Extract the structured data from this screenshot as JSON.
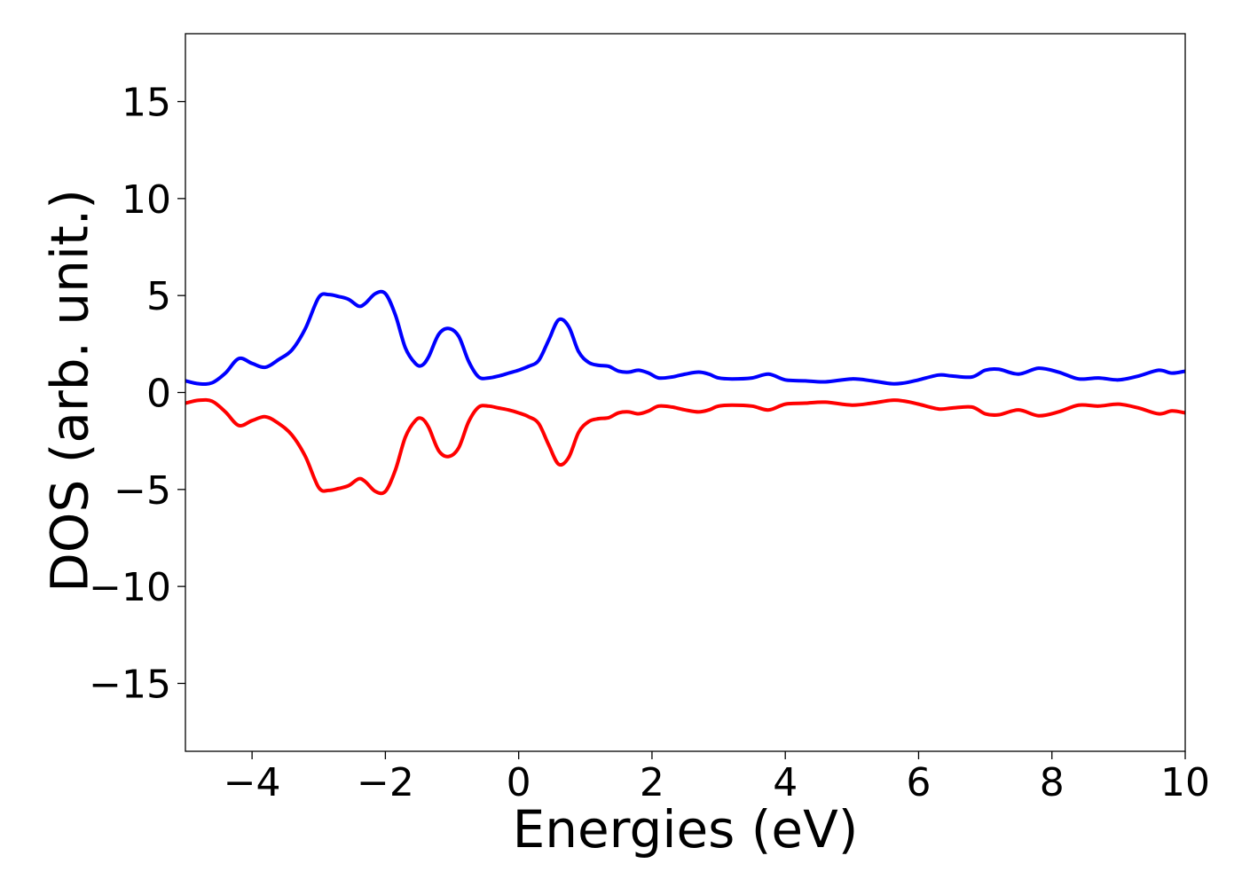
{
  "chart_data": {
    "type": "line",
    "xlabel": "Energies (eV)",
    "ylabel": "DOS (arb. unit.)",
    "xlim": [
      -5,
      10
    ],
    "ylim": [
      -18.5,
      18.5
    ],
    "grid": false,
    "xticks": [
      -4,
      -2,
      0,
      2,
      4,
      6,
      8,
      10
    ],
    "xtick_labels": [
      "−4",
      "−2",
      "0",
      "2",
      "4",
      "6",
      "8",
      "10"
    ],
    "yticks": [
      -15,
      -10,
      -5,
      0,
      5,
      10,
      15
    ],
    "ytick_labels": [
      "−15",
      "−10",
      "−5",
      "0",
      "5",
      "10",
      "15"
    ],
    "series": [
      {
        "color": "#0000ff",
        "x": [
          -5.0,
          -4.8,
          -4.6,
          -4.4,
          -4.2,
          -4.0,
          -3.8,
          -3.6,
          -3.4,
          -3.2,
          -3.0,
          -2.85,
          -2.7,
          -2.55,
          -2.4,
          -2.3,
          -2.15,
          -2.0,
          -1.85,
          -1.7,
          -1.55,
          -1.45,
          -1.35,
          -1.2,
          -1.05,
          -0.9,
          -0.75,
          -0.6,
          -0.45,
          -0.3,
          -0.15,
          0.0,
          0.15,
          0.3,
          0.45,
          0.6,
          0.75,
          0.9,
          1.05,
          1.2,
          1.35,
          1.5,
          1.65,
          1.8,
          1.95,
          2.1,
          2.3,
          2.5,
          2.7,
          2.85,
          3.0,
          3.2,
          3.5,
          3.75,
          4.0,
          4.3,
          4.6,
          5.0,
          5.3,
          5.6,
          5.8,
          6.0,
          6.3,
          6.5,
          6.8,
          7.0,
          7.2,
          7.5,
          7.8,
          8.1,
          8.4,
          8.7,
          9.0,
          9.3,
          9.6,
          9.8,
          10.0
        ],
        "y": [
          0.6,
          0.45,
          0.5,
          1.0,
          1.75,
          1.5,
          1.3,
          1.7,
          2.2,
          3.3,
          4.9,
          5.05,
          4.95,
          4.8,
          4.45,
          4.6,
          5.1,
          5.1,
          4.0,
          2.3,
          1.5,
          1.4,
          1.85,
          3.0,
          3.3,
          2.9,
          1.6,
          0.8,
          0.75,
          0.85,
          1.0,
          1.15,
          1.35,
          1.65,
          2.7,
          3.75,
          3.4,
          2.1,
          1.55,
          1.4,
          1.35,
          1.1,
          1.05,
          1.15,
          1.0,
          0.75,
          0.8,
          0.95,
          1.05,
          0.95,
          0.75,
          0.7,
          0.75,
          0.95,
          0.65,
          0.6,
          0.55,
          0.7,
          0.6,
          0.45,
          0.5,
          0.65,
          0.9,
          0.85,
          0.8,
          1.15,
          1.2,
          0.95,
          1.25,
          1.05,
          0.7,
          0.75,
          0.65,
          0.85,
          1.15,
          1.0,
          1.1
        ]
      },
      {
        "color": "#ff0000",
        "x": [
          -5.0,
          -4.8,
          -4.6,
          -4.4,
          -4.2,
          -4.0,
          -3.8,
          -3.6,
          -3.4,
          -3.2,
          -3.0,
          -2.85,
          -2.7,
          -2.55,
          -2.4,
          -2.3,
          -2.15,
          -2.0,
          -1.85,
          -1.7,
          -1.55,
          -1.45,
          -1.35,
          -1.2,
          -1.05,
          -0.9,
          -0.75,
          -0.6,
          -0.45,
          -0.3,
          -0.15,
          0.0,
          0.15,
          0.3,
          0.45,
          0.6,
          0.75,
          0.9,
          1.05,
          1.2,
          1.35,
          1.5,
          1.65,
          1.8,
          1.95,
          2.1,
          2.3,
          2.5,
          2.7,
          2.85,
          3.0,
          3.2,
          3.5,
          3.75,
          4.0,
          4.3,
          4.6,
          5.0,
          5.3,
          5.6,
          5.8,
          6.0,
          6.3,
          6.5,
          6.8,
          7.0,
          7.2,
          7.5,
          7.8,
          8.1,
          8.4,
          8.7,
          9.0,
          9.3,
          9.6,
          9.8,
          10.0
        ],
        "y": [
          -0.55,
          -0.4,
          -0.45,
          -1.0,
          -1.7,
          -1.45,
          -1.25,
          -1.6,
          -2.2,
          -3.3,
          -4.9,
          -5.05,
          -4.95,
          -4.8,
          -4.45,
          -4.6,
          -5.1,
          -5.1,
          -4.0,
          -2.3,
          -1.45,
          -1.35,
          -1.8,
          -3.0,
          -3.3,
          -2.85,
          -1.5,
          -0.75,
          -0.7,
          -0.8,
          -0.9,
          -1.05,
          -1.25,
          -1.6,
          -2.7,
          -3.7,
          -3.35,
          -2.05,
          -1.5,
          -1.35,
          -1.3,
          -1.05,
          -1.0,
          -1.1,
          -0.95,
          -0.7,
          -0.75,
          -0.9,
          -1.0,
          -0.9,
          -0.7,
          -0.65,
          -0.7,
          -0.9,
          -0.6,
          -0.55,
          -0.5,
          -0.65,
          -0.55,
          -0.4,
          -0.45,
          -0.6,
          -0.85,
          -0.8,
          -0.75,
          -1.1,
          -1.15,
          -0.9,
          -1.2,
          -1.0,
          -0.65,
          -0.7,
          -0.6,
          -0.8,
          -1.1,
          -0.95,
          -1.05
        ]
      }
    ]
  }
}
